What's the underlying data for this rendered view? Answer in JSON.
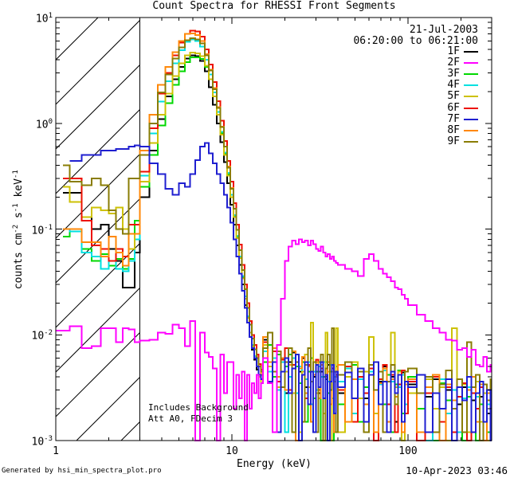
{
  "title": "Count Spectra for RHESSI Front Segments",
  "header": {
    "date": "21-Jul-2003",
    "time_range": "06:20:00 to 06:21:00"
  },
  "annotations": {
    "line1": "Includes Background",
    "line2": "Att A0, FDecim 3"
  },
  "footer": {
    "generated_by": "Generated by hsi_min_spectra_plot.pro",
    "timestamp": "10-Apr-2023 03:46"
  },
  "axes": {
    "xlabel": "Energy (keV)",
    "ylabel_parts": [
      {
        "t": "counts cm"
      },
      {
        "t": "-2",
        "sup": true
      },
      {
        "t": " s"
      },
      {
        "t": "-1",
        "sup": true
      },
      {
        "t": " keV"
      },
      {
        "t": "-1",
        "sup": true
      }
    ],
    "x_ticks": [
      {
        "v": 1,
        "label": "1"
      },
      {
        "v": 10,
        "label": "10"
      },
      {
        "v": 100,
        "label": "100"
      }
    ],
    "y_tick_exponents": [
      1,
      0,
      -1,
      -2,
      -3
    ]
  },
  "chart_data": {
    "type": "line",
    "style": "step-histogram, log-log axes",
    "title": "Count Spectra for RHESSI Front Segments",
    "xlabel": "Energy (keV)",
    "ylabel": "counts cm^-2 s^-1 keV^-1",
    "xlim": [
      1,
      307
    ],
    "ylim": [
      0.001,
      10
    ],
    "hatch_region_keV": [
      1,
      3
    ],
    "draw_order": [
      "1F",
      "3F",
      "4F",
      "5F",
      "6F",
      "8F",
      "9F",
      "7F",
      "2F"
    ],
    "x_edges_keV": [
      1.0,
      1.1,
      1.2,
      1.4,
      1.6,
      1.8,
      2.0,
      2.2,
      2.4,
      2.6,
      2.8,
      3.0,
      3.4,
      3.8,
      4.2,
      4.6,
      5.0,
      5.4,
      5.8,
      6.2,
      6.6,
      7.0,
      7.4,
      7.8,
      8.2,
      8.6,
      9.0,
      9.4,
      9.8,
      10.2,
      10.6,
      11.0,
      11.4,
      11.8,
      12.2,
      12.6,
      13.0,
      13.4,
      13.8,
      14.2,
      14.6,
      15.0,
      16,
      17,
      18,
      19,
      20,
      21,
      22,
      23,
      24,
      25,
      26,
      27,
      28,
      29,
      30,
      31,
      32,
      33,
      34,
      35,
      36,
      37,
      38,
      39,
      40,
      44,
      48,
      52,
      56,
      60,
      64,
      68,
      72,
      76,
      80,
      84,
      88,
      92,
      96,
      100,
      112,
      125,
      138,
      151,
      164,
      177,
      190,
      203,
      216,
      229,
      242,
      255,
      268,
      281,
      294,
      307
    ],
    "series": [
      {
        "name": "1F",
        "color": "#000000",
        "values": [
          null,
          0.22,
          0.22,
          0.13,
          0.1,
          0.11,
          0.065,
          0.05,
          0.028,
          0.028,
          0.06,
          0.2,
          0.55,
          1.1,
          1.8,
          2.6,
          3.4,
          4.1,
          4.4,
          4.3,
          3.9,
          3.1,
          2.2,
          1.5,
          1.0,
          0.66,
          0.43,
          0.27,
          0.17,
          0.11,
          0.07,
          0.046,
          0.03,
          0.019,
          0.013,
          0.0095,
          0.0072,
          0.0058,
          0.0047,
          0.004,
          0.0035,
          0.009,
          0.0055,
          0.007,
          0.004,
          0.006,
          0.0028,
          0.0055,
          0.0068,
          0.0008,
          0.0045,
          0.006,
          0.0032,
          0.005,
          0.0015,
          0.004,
          0.0055,
          0.0028,
          0.0045,
          0.0008,
          0.0038,
          0.0052,
          0.0022,
          0.0045,
          0.0012,
          0.004,
          0.0028,
          0.0048,
          0.0015,
          0.0038,
          0.0025,
          0.0045,
          0.0008,
          0.0036,
          0.005,
          0.0022,
          0.004,
          0.0015,
          0.0032,
          0.0044,
          0.0018,
          0.0034,
          0.0012,
          0.0026,
          0.0038,
          0.0015,
          0.003,
          0.0008,
          0.0022,
          0.0032,
          0.0008,
          0.0024,
          0.0015,
          0.0026,
          0.0008,
          0.0018,
          0.0022
        ]
      },
      {
        "name": "2F",
        "color": "#ff00ff",
        "values": [
          0.011,
          0.011,
          0.012,
          0.0075,
          0.0078,
          0.0115,
          0.0115,
          0.0085,
          0.0115,
          0.0112,
          0.0085,
          0.0088,
          0.009,
          0.0105,
          0.0102,
          0.0125,
          0.0115,
          0.0078,
          0.0135,
          0.0008,
          0.0105,
          0.0068,
          0.0062,
          0.0048,
          0.0008,
          0.0065,
          0.0028,
          0.0055,
          0.0055,
          0.002,
          0.0042,
          0.0025,
          0.0045,
          0.0008,
          0.0042,
          0.002,
          0.0035,
          0.0028,
          0.0042,
          0.0025,
          0.0035,
          0.006,
          0.0035,
          0.0012,
          0.008,
          0.022,
          0.05,
          0.068,
          0.078,
          0.072,
          0.08,
          0.075,
          0.078,
          0.07,
          0.078,
          0.072,
          0.065,
          0.062,
          0.068,
          0.06,
          0.055,
          0.058,
          0.052,
          0.055,
          0.05,
          0.048,
          0.046,
          0.042,
          0.04,
          0.036,
          0.052,
          0.058,
          0.05,
          0.042,
          0.038,
          0.035,
          0.032,
          0.028,
          0.027,
          0.024,
          0.022,
          0.019,
          0.0155,
          0.0135,
          0.0115,
          0.0105,
          0.009,
          0.0088,
          0.0072,
          0.0075,
          0.0062,
          0.0072,
          0.0052,
          0.005,
          0.0062,
          0.0045,
          0.0052
        ]
      },
      {
        "name": "3F",
        "color": "#00d800",
        "values": [
          null,
          0.085,
          0.1,
          0.065,
          0.05,
          0.058,
          0.045,
          0.052,
          0.042,
          0.052,
          0.12,
          0.25,
          0.5,
          0.95,
          1.55,
          2.3,
          3.1,
          3.8,
          4.2,
          4.2,
          4.05,
          3.4,
          2.6,
          1.8,
          1.2,
          0.8,
          0.52,
          0.33,
          0.21,
          0.133,
          0.085,
          0.054,
          0.035,
          0.023,
          0.015,
          0.0105,
          0.008,
          0.006,
          0.005,
          0.004,
          0.0035,
          0.0055,
          0.008,
          0.004,
          0.0065,
          0.0032,
          0.005,
          0.0065,
          0.0012,
          0.005,
          0.0035,
          0.0055,
          0.0015,
          0.0045,
          0.006,
          0.0025,
          0.0045,
          0.0055,
          0.0008,
          0.004,
          0.0055,
          0.0028,
          0.0045,
          0.0008,
          0.0036,
          0.005,
          0.0022,
          0.004,
          0.0052,
          0.0015,
          0.0032,
          0.0045,
          0.0008,
          0.0038,
          0.0022,
          0.0042,
          0.0012,
          0.0034,
          0.0046,
          0.0018,
          0.0036,
          0.004,
          0.002,
          0.0032,
          0.0008,
          0.0035,
          0.0024,
          0.003,
          0.0038,
          0.0008,
          0.0026,
          0.0032,
          0.0008,
          0.0022,
          0.0028,
          0.0012,
          0.0024
        ]
      },
      {
        "name": "4F",
        "color": "#00e0e0",
        "values": [
          null,
          0.1,
          0.095,
          0.06,
          0.055,
          0.042,
          0.05,
          0.042,
          0.04,
          0.05,
          0.08,
          0.32,
          0.8,
          1.6,
          2.5,
          3.7,
          4.9,
          5.9,
          6.2,
          6.0,
          5.3,
          4.0,
          2.9,
          1.95,
          1.28,
          0.83,
          0.53,
          0.34,
          0.21,
          0.135,
          0.086,
          0.055,
          0.036,
          0.023,
          0.015,
          0.0105,
          0.008,
          0.0063,
          0.005,
          0.004,
          0.0035,
          0.007,
          0.0045,
          0.006,
          0.003,
          0.0055,
          0.0012,
          0.004,
          0.006,
          0.0028,
          0.005,
          0.0015,
          0.0038,
          0.0055,
          0.0022,
          0.0045,
          0.003,
          0.005,
          0.004,
          0.0055,
          0.0008,
          0.0036,
          0.0052,
          0.0025,
          0.004,
          0.0012,
          0.0036,
          0.0048,
          0.0018,
          0.0038,
          0.0028,
          0.0045,
          0.0008,
          0.0034,
          0.0046,
          0.0015,
          0.0036,
          0.0012,
          0.0032,
          0.0042,
          0.0022,
          0.0032,
          0.0042,
          0.0008,
          0.0028,
          0.0038,
          0.0018,
          0.003,
          0.0012,
          0.0025,
          0.0032,
          0.0012,
          0.0026,
          0.0034,
          0.0008,
          0.0022,
          0.0015
        ]
      },
      {
        "name": "5F",
        "color": "#cdc104",
        "values": [
          null,
          0.25,
          0.18,
          0.13,
          0.16,
          0.15,
          0.14,
          0.16,
          0.1,
          0.065,
          0.09,
          0.28,
          0.65,
          1.2,
          1.9,
          2.8,
          3.7,
          4.4,
          4.65,
          4.6,
          4.3,
          3.5,
          2.6,
          1.8,
          1.2,
          0.78,
          0.5,
          0.32,
          0.2,
          0.13,
          0.082,
          0.053,
          0.034,
          0.022,
          0.0145,
          0.0105,
          0.0078,
          0.006,
          0.005,
          0.004,
          0.0035,
          0.008,
          0.005,
          0.0075,
          0.0032,
          0.006,
          0.0045,
          0.0075,
          0.0028,
          0.0055,
          0.0012,
          0.0045,
          0.0065,
          0.0032,
          0.013,
          0.0055,
          0.0028,
          0.0045,
          0.0065,
          0.0018,
          0.0105,
          0.0045,
          0.0008,
          0.0052,
          0.0036,
          0.0115,
          0.0012,
          0.004,
          0.0055,
          0.0025,
          0.0045,
          0.0095,
          0.0018,
          0.0038,
          0.0052,
          0.0022,
          0.0105,
          0.0032,
          0.0045,
          0.0008,
          0.0036,
          0.0028,
          0.0012,
          0.0038,
          0.002,
          0.0032,
          0.0008,
          0.0115,
          0.0026,
          0.0034,
          0.0012,
          0.0028,
          0.0036,
          0.0015,
          0.0028,
          0.0008,
          0.0022
        ]
      },
      {
        "name": "6F",
        "color": "#ed1000",
        "values": [
          null,
          0.3,
          0.3,
          0.12,
          0.07,
          0.065,
          0.05,
          0.065,
          0.055,
          0.11,
          0.11,
          0.35,
          0.9,
          1.9,
          3.0,
          4.4,
          5.8,
          7.0,
          7.5,
          7.4,
          6.6,
          5.0,
          3.6,
          2.45,
          1.62,
          1.06,
          0.68,
          0.44,
          0.28,
          0.175,
          0.11,
          0.071,
          0.046,
          0.03,
          0.02,
          0.0135,
          0.01,
          0.008,
          0.0065,
          0.0053,
          0.0047,
          0.0085,
          0.0055,
          0.007,
          0.0036,
          0.0058,
          0.0075,
          0.003,
          0.0052,
          0.0008,
          0.0048,
          0.0062,
          0.0025,
          0.0052,
          0.0015,
          0.0042,
          0.0058,
          0.003,
          0.0048,
          0.0008,
          0.004,
          0.0055,
          0.0022,
          0.0048,
          0.0012,
          0.0042,
          0.003,
          0.005,
          0.0015,
          0.004,
          0.0028,
          0.0048,
          0.0008,
          0.0038,
          0.0052,
          0.0022,
          0.0042,
          0.0012,
          0.0034,
          0.0046,
          0.0018,
          0.0036,
          0.0008,
          0.0028,
          0.004,
          0.0015,
          0.0032,
          0.0012,
          0.0026,
          0.0035,
          0.0008,
          0.0028,
          0.002,
          0.0032,
          0.0008,
          0.0024,
          0.0028
        ]
      },
      {
        "name": "7F",
        "color": "#1f1fd0",
        "values": [
          null,
          null,
          0.44,
          0.5,
          0.5,
          0.55,
          0.55,
          0.57,
          0.57,
          0.6,
          0.62,
          0.6,
          0.42,
          0.33,
          0.24,
          0.21,
          0.27,
          0.25,
          0.33,
          0.45,
          0.6,
          0.65,
          0.52,
          0.42,
          0.33,
          0.27,
          0.21,
          0.16,
          0.115,
          0.08,
          0.055,
          0.038,
          0.026,
          0.018,
          0.013,
          0.0095,
          0.0075,
          0.006,
          0.005,
          0.0042,
          0.0038,
          0.006,
          0.0036,
          0.0055,
          0.0012,
          0.0045,
          0.006,
          0.0028,
          0.0048,
          0.0065,
          0.0008,
          0.0042,
          0.0055,
          0.0022,
          0.0045,
          0.0012,
          0.0052,
          0.0032,
          0.0055,
          0.0025,
          0.0042,
          0.0008,
          0.0036,
          0.0052,
          0.0018,
          0.0045,
          0.0032,
          0.0044,
          0.0025,
          0.0048,
          0.0015,
          0.0042,
          0.0055,
          0.0022,
          0.0036,
          0.0012,
          0.0045,
          0.0028,
          0.0042,
          0.0015,
          0.0036,
          0.0032,
          0.0042,
          0.0012,
          0.0028,
          0.002,
          0.0038,
          0.0008,
          0.0032,
          0.0024,
          0.004,
          0.0012,
          0.0028,
          0.0036,
          0.0015,
          0.003,
          0.0008
        ]
      },
      {
        "name": "8F",
        "color": "#ff8808",
        "values": [
          null,
          0.1,
          0.1,
          0.075,
          0.075,
          0.055,
          0.085,
          0.06,
          0.045,
          0.09,
          0.09,
          0.55,
          1.2,
          2.3,
          3.4,
          4.7,
          6.0,
          7.0,
          7.05,
          6.8,
          6.0,
          4.5,
          3.2,
          2.15,
          1.42,
          0.93,
          0.6,
          0.39,
          0.245,
          0.155,
          0.098,
          0.063,
          0.041,
          0.027,
          0.018,
          0.0125,
          0.0092,
          0.0073,
          0.006,
          0.005,
          0.0042,
          0.0095,
          0.0055,
          0.0075,
          0.004,
          0.006,
          0.003,
          0.0052,
          0.007,
          0.0008,
          0.0048,
          0.0062,
          0.0028,
          0.005,
          0.0015,
          0.0042,
          0.0055,
          0.0025,
          0.0052,
          0.0008,
          0.0042,
          0.0055,
          0.0022,
          0.0045,
          0.0012,
          0.004,
          0.0052,
          0.0015,
          0.0038,
          0.0048,
          0.0022,
          0.0042,
          0.0012,
          0.0035,
          0.0048,
          0.0015,
          0.0038,
          0.0026,
          0.0042,
          0.0012,
          0.0034,
          0.0038,
          0.0012,
          0.0032,
          0.0042,
          0.0008,
          0.0034,
          0.0024,
          0.0038,
          0.0012,
          0.003,
          0.004,
          0.0015,
          0.0034,
          0.0008,
          0.0028,
          0.0035
        ]
      },
      {
        "name": "9F",
        "color": "#8a7d05",
        "values": [
          null,
          0.4,
          0.28,
          0.26,
          0.3,
          0.26,
          0.15,
          0.1,
          0.09,
          0.3,
          0.3,
          0.5,
          1.0,
          1.95,
          2.9,
          4.1,
          5.2,
          6.1,
          6.35,
          6.2,
          5.7,
          4.4,
          3.15,
          2.1,
          1.4,
          0.92,
          0.6,
          0.38,
          0.24,
          0.155,
          0.098,
          0.063,
          0.041,
          0.027,
          0.018,
          0.0125,
          0.0092,
          0.0073,
          0.006,
          0.005,
          0.0045,
          0.0075,
          0.0105,
          0.0045,
          0.007,
          0.0032,
          0.0055,
          0.0075,
          0.0012,
          0.0055,
          0.0008,
          0.0015,
          0.0052,
          0.0075,
          0.0036,
          0.0055,
          0.0012,
          0.0045,
          0.0065,
          0.0008,
          0.0048,
          0.0065,
          0.003,
          0.0115,
          0.0045,
          0.0012,
          0.0042,
          0.0055,
          0.0025,
          0.0045,
          0.0012,
          0.0052,
          0.003,
          0.0045,
          0.0012,
          0.0036,
          0.0052,
          0.0022,
          0.0042,
          0.0015,
          0.0045,
          0.0048,
          0.0028,
          0.004,
          0.0012,
          0.0034,
          0.0046,
          0.002,
          0.0038,
          0.0012,
          0.0085,
          0.0032,
          0.0042,
          0.0008,
          0.0034,
          0.0024,
          0.0038
        ]
      }
    ]
  }
}
